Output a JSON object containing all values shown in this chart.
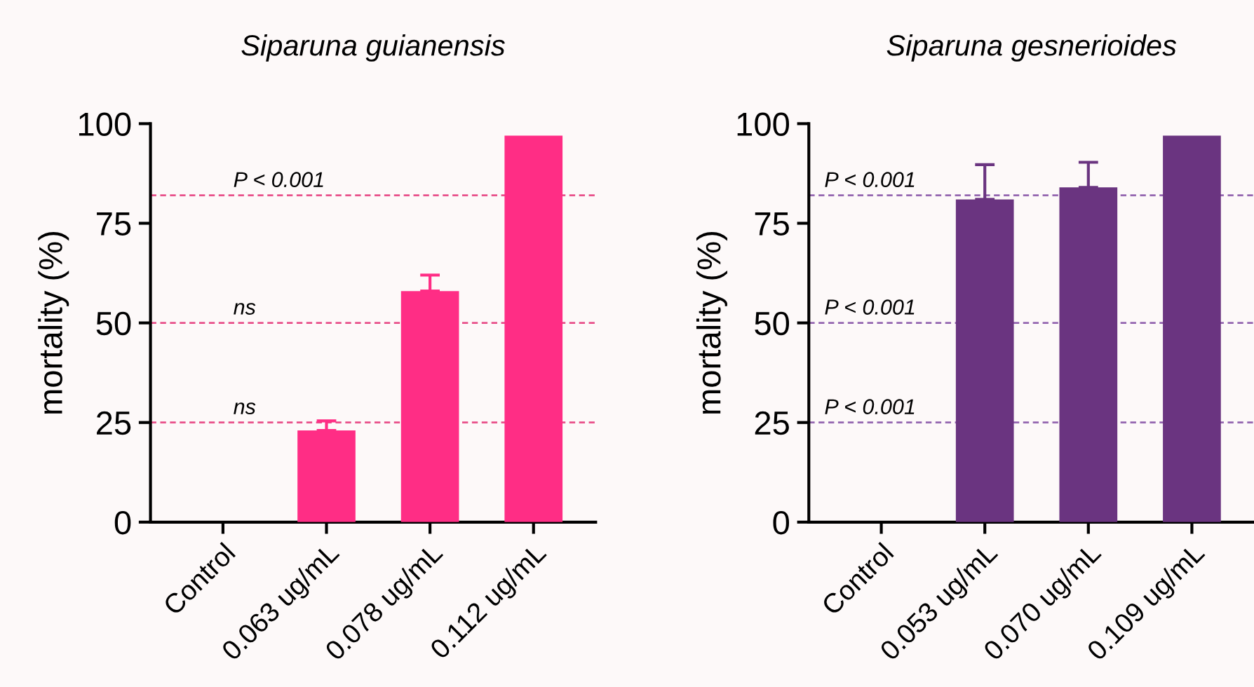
{
  "chart_data": [
    {
      "type": "bar",
      "title": "Siparuna guianensis",
      "ylabel": "mortality (%)",
      "categories": [
        "Control",
        "0.063 ug/mL",
        "0.078 ug/mL",
        "0.112 ug/mL"
      ],
      "values": [
        0,
        23,
        58,
        97
      ],
      "errors": [
        null,
        2.4,
        4,
        null
      ],
      "color": "#ff2d85",
      "ylim": [
        0,
        100
      ],
      "yticks": [
        0,
        25,
        50,
        75,
        100
      ],
      "grid": false,
      "ref_lines": [
        {
          "axis": "y",
          "value": 82,
          "label": "P < 0.001",
          "color": "#e8508a",
          "line_style": "dashed"
        },
        {
          "axis": "y",
          "value": 50,
          "label": "ns",
          "color": "#e8508a",
          "line_style": "dashed"
        },
        {
          "axis": "y",
          "value": 25,
          "label": "ns",
          "color": "#e8508a",
          "line_style": "dashed"
        }
      ]
    },
    {
      "type": "bar",
      "title": "Siparuna gesnerioides",
      "ylabel": "mortality (%)",
      "categories": [
        "Control",
        "0.053 ug/mL",
        "0.070 ug/mL",
        "0.109 ug/mL"
      ],
      "values": [
        0,
        81,
        84,
        97
      ],
      "errors": [
        null,
        8.7,
        6.3,
        null
      ],
      "color": "#6a3480",
      "ylim": [
        0,
        100
      ],
      "yticks": [
        0,
        25,
        50,
        75,
        100
      ],
      "grid": false,
      "ref_lines": [
        {
          "axis": "y",
          "value": 82,
          "label": "P < 0.001",
          "color": "#9466b0",
          "line_style": "dashed"
        },
        {
          "axis": "y",
          "value": 50,
          "label": "P < 0.001",
          "color": "#9466b0",
          "line_style": "dashed"
        },
        {
          "axis": "y",
          "value": 25,
          "label": "P < 0.001",
          "color": "#9466b0",
          "line_style": "dashed"
        }
      ]
    }
  ]
}
